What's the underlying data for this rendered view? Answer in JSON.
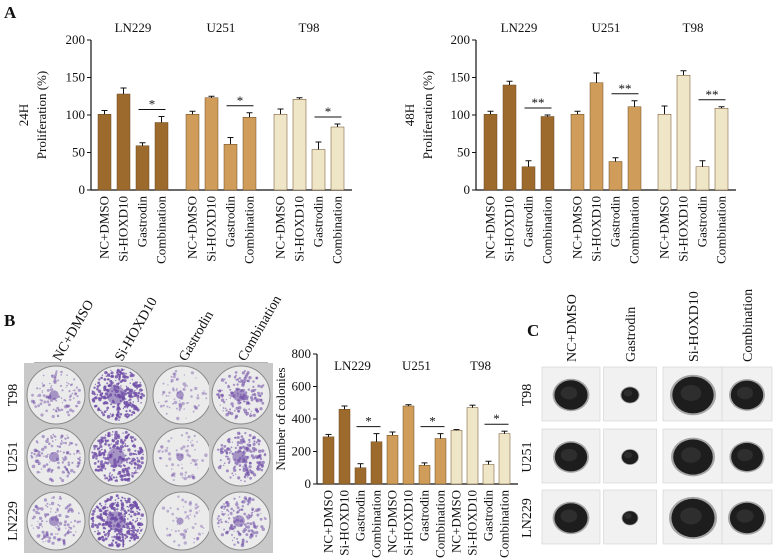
{
  "panel_labels": {
    "a": "A",
    "b": "B",
    "c": "C"
  },
  "colors": {
    "LN229": "#9c6a2c",
    "U251": "#cf9c5a",
    "T98": "#eee6c6",
    "bar_edge": "#6b4a22",
    "dish_bg": "#ebebeb",
    "stain": "#6e4ca6",
    "sphere_bg": "#f1f1f1",
    "sphere": "#1d1d1d"
  },
  "chart_data": [
    {
      "id": "a24",
      "type": "bar",
      "ylabel": "Proliferation (%)",
      "row_label": "24H",
      "ylim": [
        0,
        200
      ],
      "yticks": [
        0,
        50,
        100,
        150,
        200
      ],
      "groups": [
        "LN229",
        "U251",
        "T98"
      ],
      "categories": [
        "NC+DMSO",
        "Si-HOXD10",
        "Gastrodin",
        "Combination"
      ],
      "series": [
        {
          "name": "LN229",
          "values": [
            101,
            128,
            59,
            90
          ],
          "errors": [
            5,
            8,
            4,
            8
          ]
        },
        {
          "name": "U251",
          "values": [
            101,
            123,
            61,
            97
          ],
          "errors": [
            4,
            2,
            9,
            6
          ]
        },
        {
          "name": "T98",
          "values": [
            101,
            121,
            54,
            84
          ],
          "errors": [
            7,
            2,
            10,
            4
          ]
        }
      ],
      "significance": [
        "*",
        "*",
        "*"
      ]
    },
    {
      "id": "a48",
      "type": "bar",
      "ylabel": "Proliferation (%)",
      "row_label": "48H",
      "ylim": [
        0,
        200
      ],
      "yticks": [
        0,
        50,
        100,
        150,
        200
      ],
      "groups": [
        "LN229",
        "U251",
        "T98"
      ],
      "categories": [
        "NC+DMSO",
        "Si-HOXD10",
        "Gastrodin",
        "Combination"
      ],
      "series": [
        {
          "name": "LN229",
          "values": [
            101,
            140,
            31,
            98
          ],
          "errors": [
            4,
            5,
            8,
            2
          ]
        },
        {
          "name": "U251",
          "values": [
            101,
            143,
            38,
            111
          ],
          "errors": [
            4,
            13,
            5,
            8
          ]
        },
        {
          "name": "T98",
          "values": [
            101,
            153,
            31,
            109
          ],
          "errors": [
            11,
            6,
            8,
            2
          ]
        }
      ],
      "significance": [
        "**",
        "**",
        "**"
      ]
    },
    {
      "id": "b",
      "type": "bar",
      "ylabel": "Number of colonies",
      "ylim": [
        0,
        800
      ],
      "yticks": [
        0,
        200,
        400,
        600,
        800
      ],
      "groups": [
        "LN229",
        "U251",
        "T98"
      ],
      "categories": [
        "NC+DMSO",
        "Si-HOXD10",
        "Gastrodin",
        "Combination"
      ],
      "series": [
        {
          "name": "LN229",
          "values": [
            290,
            460,
            100,
            260
          ],
          "errors": [
            15,
            20,
            25,
            50
          ]
        },
        {
          "name": "U251",
          "values": [
            300,
            480,
            115,
            280
          ],
          "errors": [
            20,
            8,
            15,
            30
          ]
        },
        {
          "name": "T98",
          "values": [
            330,
            470,
            120,
            310
          ],
          "errors": [
            5,
            15,
            20,
            15
          ]
        }
      ],
      "significance": [
        "*",
        "*",
        "*"
      ]
    }
  ],
  "colony_panel": {
    "columns": [
      "NC+DMSO",
      "Si-HOXD10",
      "Gastrodin",
      "Combination"
    ],
    "rows": [
      "T98",
      "U251",
      "LN229"
    ],
    "density": [
      [
        0.25,
        0.9,
        0.12,
        0.45
      ],
      [
        0.3,
        0.85,
        0.1,
        0.5
      ],
      [
        0.3,
        0.95,
        0.08,
        0.4
      ]
    ]
  },
  "sphere_panel": {
    "columns": [
      "NC+DMSO",
      "Gastrodin",
      "Si-HOXD10",
      "Combination"
    ],
    "rows": [
      "T98",
      "U251",
      "LN229"
    ],
    "sizes": [
      [
        0.62,
        0.18,
        0.85,
        0.6
      ],
      [
        0.6,
        0.15,
        0.8,
        0.58
      ],
      [
        0.62,
        0.12,
        0.9,
        0.65
      ]
    ]
  }
}
